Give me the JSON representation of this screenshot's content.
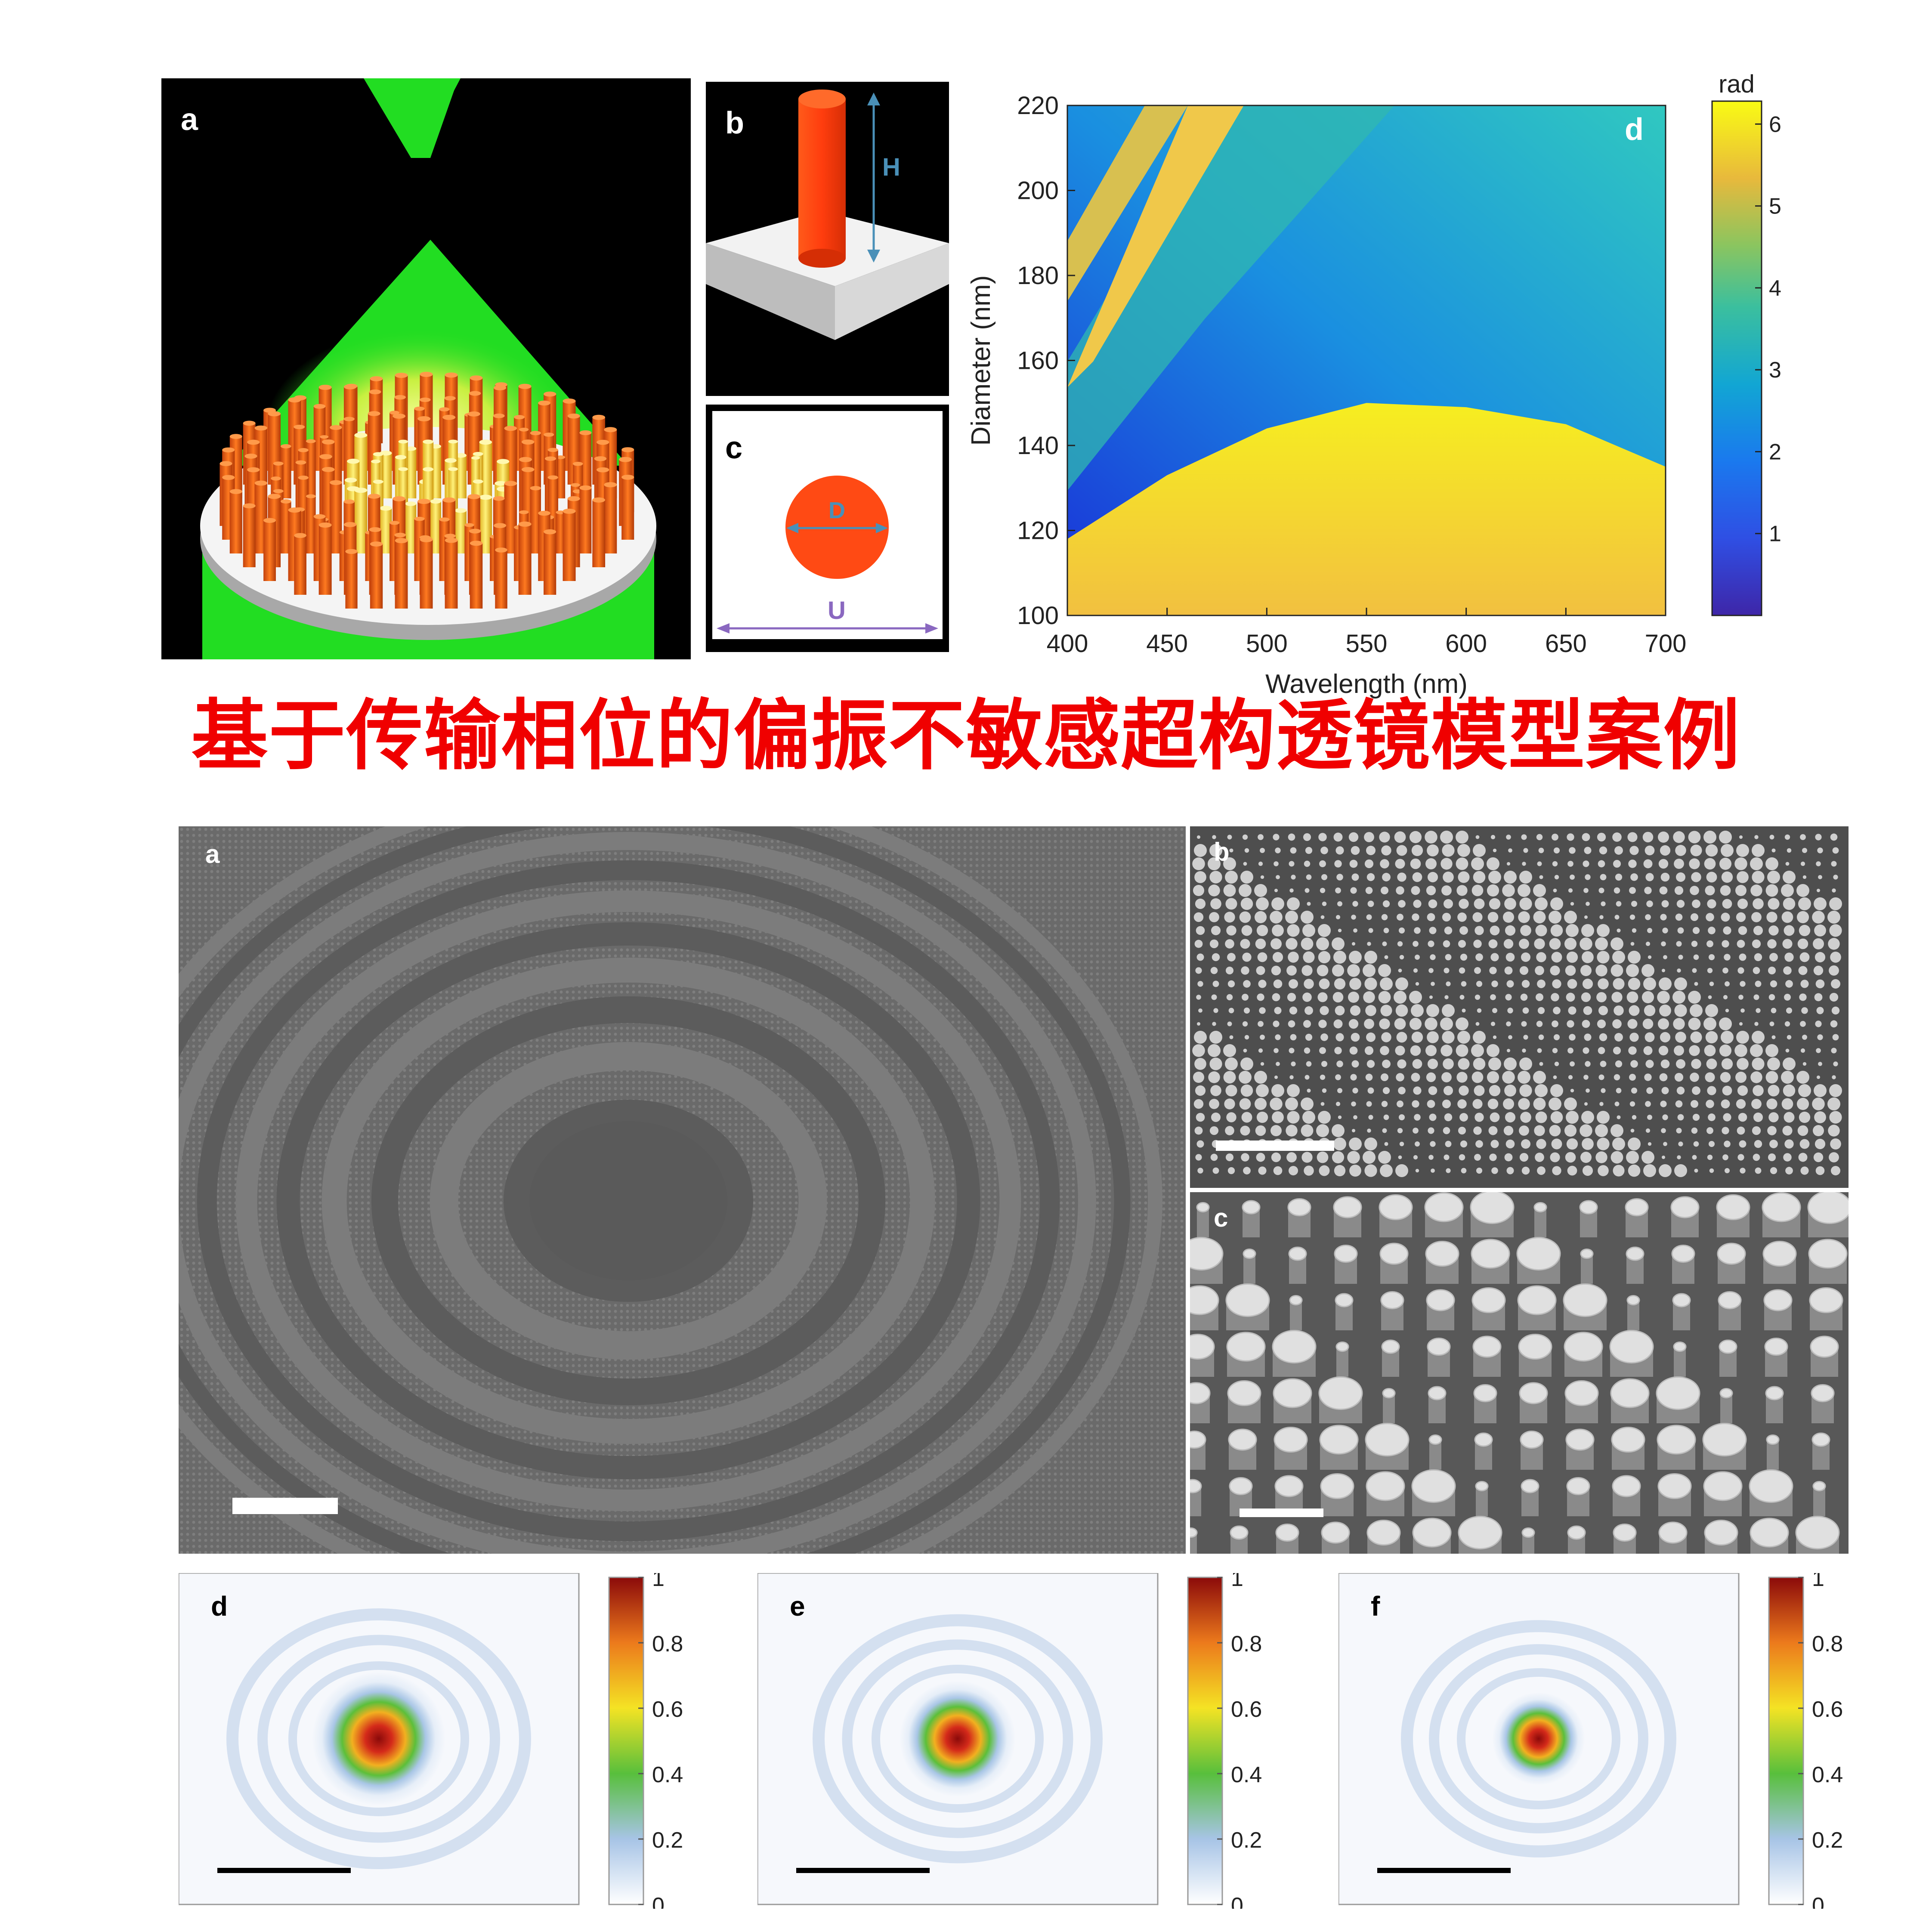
{
  "top": {
    "panel_a": {
      "label": "a"
    },
    "panel_b": {
      "label": "b",
      "dim_label": "H"
    },
    "panel_c": {
      "label": "c",
      "diameter_label": "D",
      "period_label": "U"
    },
    "panel_d": {
      "label": "d"
    }
  },
  "title": "基于传输相位的偏振不敏感超构透镜模型案例",
  "bottom": {
    "sem_a": {
      "label": "a"
    },
    "sem_b": {
      "label": "b"
    },
    "sem_c": {
      "label": "c"
    },
    "focal_d": {
      "label": "d"
    },
    "focal_e": {
      "label": "e"
    },
    "focal_f": {
      "label": "f"
    }
  },
  "colors": {
    "title_red": "#f00000",
    "focus_green": "#22dd22",
    "pillar_orange": "#ff4a14"
  },
  "chart_data": [
    {
      "type": "heatmap",
      "xlabel": "Wavelength (nm)",
      "ylabel": "Diameter (nm)",
      "xlim": [
        400,
        700
      ],
      "ylim": [
        100,
        220
      ],
      "xticks": [
        400,
        450,
        500,
        550,
        600,
        650,
        700
      ],
      "yticks": [
        100,
        120,
        140,
        160,
        180,
        200,
        220
      ],
      "colorbar": {
        "label": "rad",
        "range": [
          0,
          6.28
        ],
        "ticks": [
          1,
          2,
          3,
          4,
          5,
          6
        ],
        "colormap": "parula"
      },
      "phase_boundary_diameter": {
        "x": [
          400,
          450,
          500,
          550,
          600,
          650,
          700
        ],
        "y": [
          118,
          133,
          144,
          150,
          149,
          145,
          135
        ]
      }
    },
    {
      "type": "heatmap",
      "panel": "d",
      "colormap": "jet",
      "peak": 1,
      "colorbar": {
        "range": [
          0,
          1
        ],
        "ticks": [
          "0",
          "0.2",
          "0.4",
          "0.6",
          "0.8",
          "1"
        ]
      }
    },
    {
      "type": "heatmap",
      "panel": "e",
      "colormap": "jet",
      "peak": 1,
      "colorbar": {
        "range": [
          0,
          1
        ],
        "ticks": [
          "0",
          "0.2",
          "0.4",
          "0.6",
          "0.8",
          "1"
        ]
      }
    },
    {
      "type": "heatmap",
      "panel": "f",
      "colormap": "jet",
      "peak": 1,
      "colorbar": {
        "range": [
          0,
          1
        ],
        "ticks": [
          "0",
          "0.2",
          "0.4",
          "0.6",
          "0.8",
          "1"
        ]
      }
    }
  ]
}
